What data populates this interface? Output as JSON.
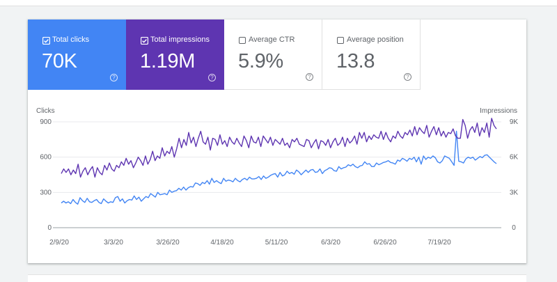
{
  "metrics": [
    {
      "label": "Total clicks",
      "value": "70K",
      "checked": true,
      "color": "#4285f4"
    },
    {
      "label": "Total impressions",
      "value": "1.19M",
      "checked": true,
      "color": "#5e35b1"
    },
    {
      "label": "Average CTR",
      "value": "5.9%",
      "checked": false
    },
    {
      "label": "Average position",
      "value": "13.8",
      "checked": false
    }
  ],
  "help_glyph": "?",
  "chart_data": {
    "type": "line",
    "ylabel": "Clicks",
    "ylabel_right": "Impressions",
    "y_ticks": [
      "900",
      "600",
      "300",
      "0"
    ],
    "y_ticks_right": [
      "9K",
      "6K",
      "3K",
      "0"
    ],
    "ylim": [
      0,
      900
    ],
    "ylim_right": [
      0,
      9000
    ],
    "x_tick_labels": [
      "2/9/20",
      "3/3/20",
      "3/26/20",
      "4/18/20",
      "5/11/20",
      "6/3/20",
      "6/26/20",
      "7/19/20"
    ],
    "grid": true,
    "series": [
      {
        "axis": "left",
        "color": "#4285f4",
        "values": [
          210,
          225,
          210,
          220,
          205,
          240,
          215,
          200,
          255,
          230,
          215,
          250,
          220,
          215,
          230,
          240,
          215,
          205,
          245,
          225,
          210,
          220,
          215,
          255,
          265,
          225,
          245,
          210,
          230,
          240,
          235,
          270,
          240,
          260,
          225,
          245,
          265,
          255,
          290,
          275,
          260,
          300,
          280,
          285,
          290,
          280,
          320,
          300,
          310,
          315,
          335,
          320,
          345,
          320,
          340,
          350,
          345,
          380,
          375,
          360,
          385,
          375,
          400,
          370,
          420,
          385,
          400,
          385,
          375,
          420,
          395,
          405,
          400,
          390,
          420,
          400,
          390,
          410,
          420,
          405,
          430,
          415,
          415,
          420,
          435,
          410,
          440,
          420,
          430,
          445,
          455,
          460,
          430,
          470,
          440,
          450,
          480,
          460,
          470,
          455,
          490,
          475,
          450,
          470,
          490,
          470,
          490,
          495,
          470,
          475,
          500,
          460,
          485,
          495,
          510,
          505,
          485,
          480,
          520,
          500,
          510,
          515,
          535,
          525,
          540,
          520,
          510,
          525,
          530,
          560,
          540,
          545,
          520,
          520,
          550,
          535,
          545,
          555,
          560,
          570,
          555,
          550,
          540,
          575,
          565,
          590,
          580,
          565,
          590,
          580,
          600,
          560,
          600,
          540,
          610,
          580,
          600,
          590,
          610,
          595,
          560,
          550,
          570,
          610,
          600,
          590,
          560,
          530,
          820,
          565,
          560,
          550,
          585,
          600,
          590,
          600,
          575,
          590,
          605,
          595,
          615,
          620,
          600,
          580,
          560,
          545
        ]
      },
      {
        "axis": "right",
        "color": "#5e35b1",
        "values": [
          4600,
          5000,
          4700,
          5000,
          4500,
          4900,
          4600,
          5400,
          4300,
          4800,
          5100,
          4500,
          4900,
          5200,
          4300,
          5100,
          4700,
          4500,
          5300,
          4900,
          5500,
          5000,
          4800,
          5300,
          5100,
          5600,
          5300,
          5900,
          5400,
          5700,
          5100,
          5500,
          6000,
          5700,
          5300,
          6100,
          5400,
          5800,
          6500,
          5700,
          6100,
          5900,
          6800,
          6100,
          6500,
          6300,
          6900,
          6000,
          6700,
          7600,
          6800,
          7500,
          7000,
          8100,
          7200,
          7700,
          6900,
          7600,
          8200,
          7300,
          7100,
          7700,
          6600,
          7600,
          7500,
          7000,
          7900,
          7100,
          7400,
          6900,
          7700,
          7300,
          7100,
          7600,
          7200,
          6900,
          7800,
          7400,
          6800,
          7800,
          7300,
          7200,
          7700,
          6900,
          7800,
          7500,
          7200,
          7700,
          7000,
          7500,
          7300,
          7100,
          7600,
          7000,
          7200,
          6800,
          7500,
          7300,
          7600,
          7100,
          7000,
          6900,
          7500,
          7400,
          6800,
          7200,
          7500,
          6700,
          7400,
          7300,
          7000,
          7500,
          6800,
          7300,
          7600,
          7000,
          7200,
          7700,
          6900,
          7600,
          7200,
          7400,
          7800,
          7100,
          8100,
          7600,
          8100,
          7300,
          7800,
          7500,
          7900,
          7700,
          7600,
          8200,
          7500,
          8100,
          7600,
          7300,
          7800,
          7600,
          8200,
          7800,
          7600,
          8100,
          7900,
          8300,
          7800,
          8600,
          7900,
          8500,
          8200,
          8000,
          8700,
          7700,
          8200,
          8600,
          7900,
          8500,
          7800,
          8200,
          7700,
          8100,
          8000,
          8400,
          7800,
          7600,
          7600,
          9200,
          8700,
          7600,
          8300,
          8600,
          8100,
          8900,
          7800,
          8500,
          8100,
          8900,
          7700,
          9300,
          8700,
          8400
        ]
      }
    ]
  }
}
